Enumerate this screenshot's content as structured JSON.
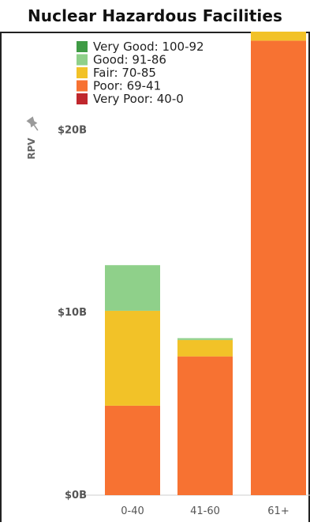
{
  "chart_data": {
    "type": "bar",
    "stacked": true,
    "title": "Nuclear Hazardous Facilities",
    "ylabel": "RPV",
    "ylabel_icon": "pin-icon",
    "categories": [
      "0-40",
      "41-60",
      "61+"
    ],
    "ylim": [
      0,
      26
    ],
    "yticks": [
      0,
      10,
      20
    ],
    "ytick_labels": [
      "$0B",
      "$10B",
      "$20B"
    ],
    "series": [
      {
        "name": "Poor: 69-41",
        "color": "#f77232",
        "values": [
          4.9,
          7.6,
          24.9
        ]
      },
      {
        "name": "Fair: 70-85",
        "color": "#f2c228",
        "values": [
          5.2,
          0.9,
          1.9
        ]
      },
      {
        "name": "Good: 91-86",
        "color": "#8fd08a",
        "values": [
          2.5,
          0.1,
          0.0
        ]
      },
      {
        "name": "Very Good: 100-92",
        "color": "#3f9b45",
        "values": [
          0.0,
          0.0,
          0.1
        ]
      },
      {
        "name": "Very Poor: 40-0",
        "color": "#c0272d",
        "values": [
          0.0,
          0.0,
          0.0
        ]
      }
    ],
    "legend": {
      "placement": "top-left",
      "order": [
        "Very Good: 100-92",
        "Good: 91-86",
        "Fair: 70-85",
        "Poor: 69-41",
        "Very Poor: 40-0"
      ]
    },
    "grid": false
  }
}
